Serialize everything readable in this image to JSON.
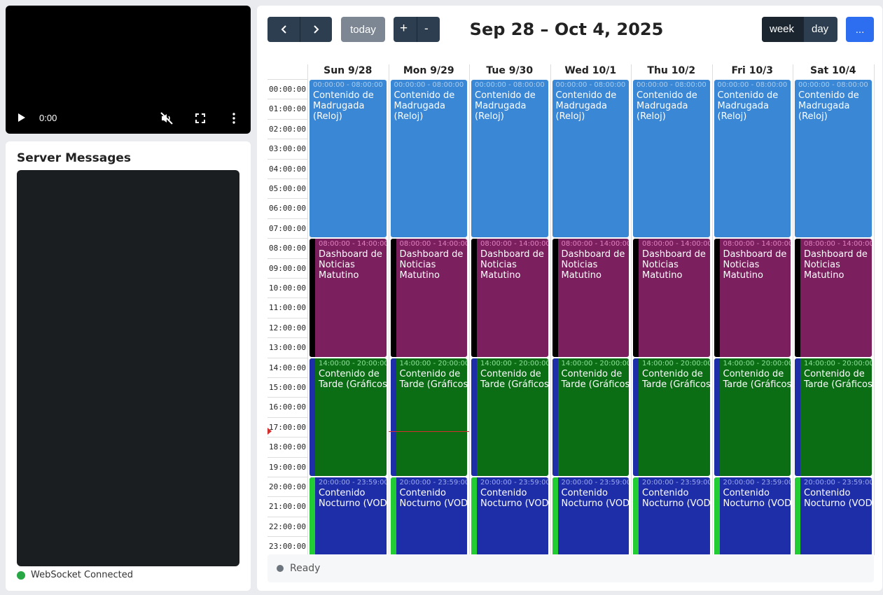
{
  "video": {
    "time": "0:00"
  },
  "server_messages": {
    "title": "Server Messages",
    "ws_status": "WebSocket Connected"
  },
  "toolbar": {
    "prev": "prev-icon",
    "next": "next-icon",
    "today": "today",
    "plus": "+",
    "minus": "-",
    "title": "Sep 28 – Oct 4, 2025",
    "week": "week",
    "day": "day",
    "more": "..."
  },
  "days": [
    "Sun 9/28",
    "Mon 9/29",
    "Tue 9/30",
    "Wed 10/1",
    "Thu 10/2",
    "Fri 10/3",
    "Sat 10/4"
  ],
  "times": [
    "00:00:00",
    "01:00:00",
    "02:00:00",
    "03:00:00",
    "04:00:00",
    "05:00:00",
    "06:00:00",
    "07:00:00",
    "08:00:00",
    "09:00:00",
    "10:00:00",
    "11:00:00",
    "12:00:00",
    "13:00:00",
    "14:00:00",
    "15:00:00",
    "16:00:00",
    "17:00:00",
    "18:00:00",
    "19:00:00",
    "20:00:00",
    "21:00:00",
    "22:00:00",
    "23:00:00"
  ],
  "events": [
    {
      "time": "00:00:00 - 08:00:00",
      "title": "Contenido de Madrugada (Reloj)",
      "start": 0,
      "end": 8,
      "color": "#3a87d6",
      "strip": "",
      "time_color": "#a8cdf0"
    },
    {
      "time": "08:00:00 - 14:00:00",
      "title": "Dashboard de Noticias Matutino",
      "start": 8,
      "end": 14,
      "color": "#7b1f5e",
      "strip": "#000000",
      "time_color": "#e080c0"
    },
    {
      "time": "14:00:00 - 20:00:00",
      "title": "Contenido de Tarde (Gráficos)",
      "start": 14,
      "end": 20,
      "color": "#0b6e15",
      "strip": "#1e2ea8",
      "time_color": "#8fe09a"
    },
    {
      "time": "20:00:00 - 23:59:00",
      "title": "Contenido Nocturno (VOD)",
      "start": 20,
      "end": 24,
      "color": "#1e2ea8",
      "strip": "#22cc33",
      "time_color": "#9aa6f0"
    }
  ],
  "now": {
    "hour": 17.7,
    "day_index": 1
  },
  "status": "Ready"
}
